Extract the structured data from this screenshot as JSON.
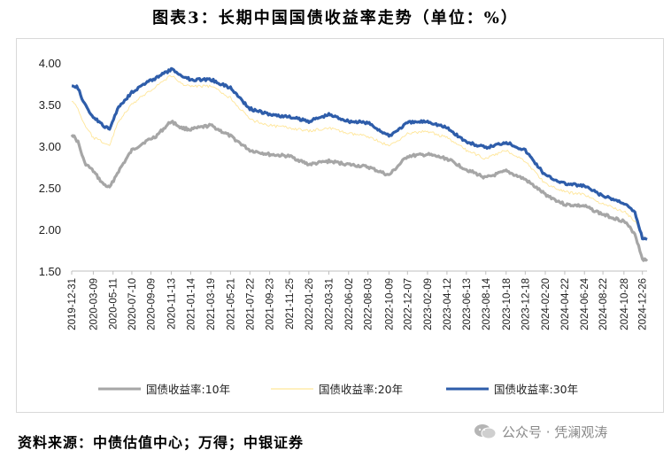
{
  "title": "图表3：长期中国国债收益率走势（单位：%）",
  "source_text": "资料来源：中债估值中心；万得；中银证券",
  "watermark": {
    "text": "公众号 · 凭澜观涛",
    "icon": "wechat-icon"
  },
  "chart_data": {
    "type": "line",
    "title": "图表3：长期中国国债收益率走势（单位：%）",
    "xlabel": "",
    "ylabel": "",
    "ylim": [
      1.5,
      4.0
    ],
    "yticks": [
      "4.00",
      "3.50",
      "3.00",
      "2.50",
      "2.00",
      "1.50"
    ],
    "xticks": [
      "2019-12-31",
      "2020-03-09",
      "2020-05-11",
      "2020-07-10",
      "2020-09-09",
      "2020-11-13",
      "2021-01-14",
      "2021-03-19",
      "2021-05-21",
      "2021-07-22",
      "2021-09-23",
      "2021-11-25",
      "2022-01-26",
      "2022-03-31",
      "2022-06-02",
      "2022-08-03",
      "2022-10-09",
      "2022-12-07",
      "2023-02-09",
      "2023-04-12",
      "2023-06-13",
      "2023-08-14",
      "2023-10-18",
      "2023-12-18",
      "2024-02-20",
      "2024-04-22",
      "2024-06-24",
      "2024-08-22",
      "2024-10-28",
      "2024-12-26"
    ],
    "grid": false,
    "legend": "bottom",
    "series": [
      {
        "name": "国债收益率:10年",
        "color": "#a6a6a6",
        "x": [
          "2019-12-31",
          "2020-01-20",
          "2020-02-10",
          "2020-03-09",
          "2020-04-08",
          "2020-04-30",
          "2020-05-25",
          "2020-07-10",
          "2020-08-20",
          "2020-09-25",
          "2020-11-13",
          "2020-12-15",
          "2021-01-14",
          "2021-03-19",
          "2021-05-21",
          "2021-07-22",
          "2021-09-23",
          "2021-11-25",
          "2022-01-26",
          "2022-03-31",
          "2022-06-02",
          "2022-08-03",
          "2022-10-09",
          "2022-12-07",
          "2023-02-09",
          "2023-04-12",
          "2023-06-13",
          "2023-08-14",
          "2023-10-18",
          "2023-12-18",
          "2024-02-20",
          "2024-04-22",
          "2024-06-24",
          "2024-08-22",
          "2024-10-28",
          "2024-12-02",
          "2024-12-26",
          "2025-01-10"
        ],
        "values": [
          3.15,
          3.05,
          2.8,
          2.7,
          2.55,
          2.5,
          2.68,
          2.95,
          3.05,
          3.12,
          3.3,
          3.22,
          3.2,
          3.25,
          3.12,
          2.95,
          2.9,
          2.88,
          2.78,
          2.82,
          2.78,
          2.75,
          2.65,
          2.88,
          2.9,
          2.85,
          2.72,
          2.62,
          2.7,
          2.6,
          2.42,
          2.3,
          2.28,
          2.18,
          2.1,
          1.95,
          1.65,
          1.62
        ]
      },
      {
        "name": "国债收益率:20年",
        "color": "#ffe699",
        "x": [
          "2019-12-31",
          "2020-01-20",
          "2020-02-10",
          "2020-03-09",
          "2020-04-08",
          "2020-04-30",
          "2020-05-25",
          "2020-07-10",
          "2020-08-20",
          "2020-09-25",
          "2020-11-13",
          "2020-12-15",
          "2021-01-14",
          "2021-03-19",
          "2021-05-21",
          "2021-07-22",
          "2021-09-23",
          "2021-11-25",
          "2022-01-26",
          "2022-03-31",
          "2022-06-02",
          "2022-08-03",
          "2022-10-09",
          "2022-12-07",
          "2023-02-09",
          "2023-04-12",
          "2023-06-13",
          "2023-08-14",
          "2023-10-18",
          "2023-12-18",
          "2024-02-20",
          "2024-04-22",
          "2024-06-24",
          "2024-08-22",
          "2024-10-28",
          "2024-12-02",
          "2024-12-26",
          "2025-01-10"
        ],
        "values": [
          3.55,
          3.45,
          3.25,
          3.1,
          3.05,
          3.0,
          3.28,
          3.5,
          3.62,
          3.72,
          3.85,
          3.75,
          3.72,
          3.72,
          3.58,
          3.32,
          3.25,
          3.22,
          3.18,
          3.22,
          3.15,
          3.12,
          3.0,
          3.15,
          3.18,
          3.1,
          2.95,
          2.85,
          2.95,
          2.82,
          2.55,
          2.45,
          2.42,
          2.3,
          2.22,
          2.1,
          1.92,
          1.88
        ]
      },
      {
        "name": "国债收益率:30年",
        "color": "#2e5daa",
        "x": [
          "2019-12-31",
          "2020-01-20",
          "2020-02-10",
          "2020-03-09",
          "2020-04-08",
          "2020-04-30",
          "2020-05-25",
          "2020-07-10",
          "2020-08-20",
          "2020-09-25",
          "2020-11-13",
          "2020-12-15",
          "2021-01-14",
          "2021-03-19",
          "2021-05-21",
          "2021-07-22",
          "2021-09-23",
          "2021-11-25",
          "2022-01-26",
          "2022-03-31",
          "2022-06-02",
          "2022-08-03",
          "2022-10-09",
          "2022-12-07",
          "2023-02-09",
          "2023-04-12",
          "2023-06-13",
          "2023-08-14",
          "2023-10-18",
          "2023-12-18",
          "2024-02-20",
          "2024-04-22",
          "2024-06-24",
          "2024-08-22",
          "2024-10-28",
          "2024-12-02",
          "2024-12-26",
          "2025-01-10"
        ],
        "values": [
          3.74,
          3.7,
          3.5,
          3.35,
          3.25,
          3.2,
          3.45,
          3.65,
          3.75,
          3.82,
          3.92,
          3.85,
          3.8,
          3.8,
          3.7,
          3.45,
          3.38,
          3.35,
          3.3,
          3.38,
          3.3,
          3.28,
          3.12,
          3.28,
          3.3,
          3.22,
          3.05,
          2.98,
          3.05,
          2.95,
          2.65,
          2.55,
          2.52,
          2.4,
          2.32,
          2.2,
          1.9,
          1.88
        ]
      }
    ]
  }
}
